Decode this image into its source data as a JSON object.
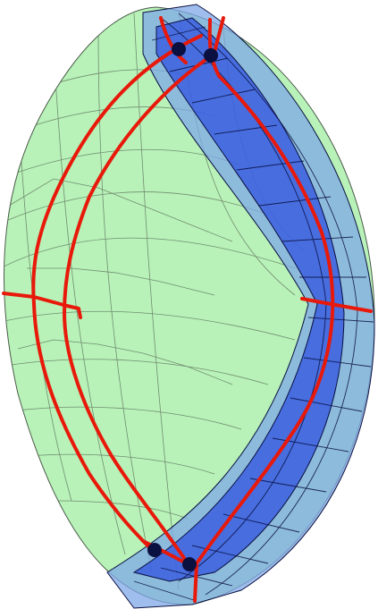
{
  "figure": {
    "kind": "3d-mesh-rendering",
    "text_labels": [],
    "colors": {
      "background": "#ffffff",
      "outer_body_fill": "#b8f2b8",
      "outer_body_edge": "#5a6b5a",
      "inner_band_fill": "#2a4be0",
      "inner_band_light": "#7fa8e8",
      "inner_band_edge": "#0a1040",
      "curve": "#e8190a",
      "node_marker": "#0a1040"
    },
    "components": [
      {
        "name": "outer-body",
        "description_shape": "lens"
      },
      {
        "name": "inner-band",
        "description_shape": "crescent"
      },
      {
        "name": "curve-set",
        "count": 3
      },
      {
        "name": "node-markers",
        "count": 4
      }
    ]
  }
}
